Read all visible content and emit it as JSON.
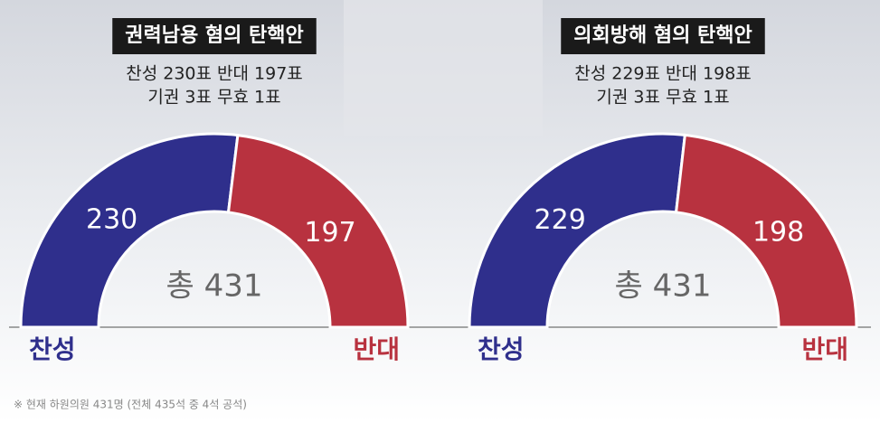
{
  "chart_data": [
    {
      "type": "semi-donut",
      "title": "권력남용 혐의 탄핵안",
      "subtitle_lines": [
        "찬성 230표 반대 197표",
        "기권 3표 무효 1표"
      ],
      "categories": [
        "찬성",
        "반대"
      ],
      "values": [
        230,
        197
      ],
      "colors": [
        "#2f2f8c",
        "#b8323f"
      ],
      "total_label": "총 431"
    },
    {
      "type": "semi-donut",
      "title": "의회방해 혐의 탄핵안",
      "subtitle_lines": [
        "찬성 229표 반대 198표",
        "기권 3표 무효 1표"
      ],
      "categories": [
        "찬성",
        "반대"
      ],
      "values": [
        229,
        198
      ],
      "colors": [
        "#2f2f8c",
        "#b8323f"
      ],
      "total_label": "총 431"
    }
  ],
  "footnote": "※ 현재 하원의원 431명 (전체 435석 중 4석 공석)"
}
